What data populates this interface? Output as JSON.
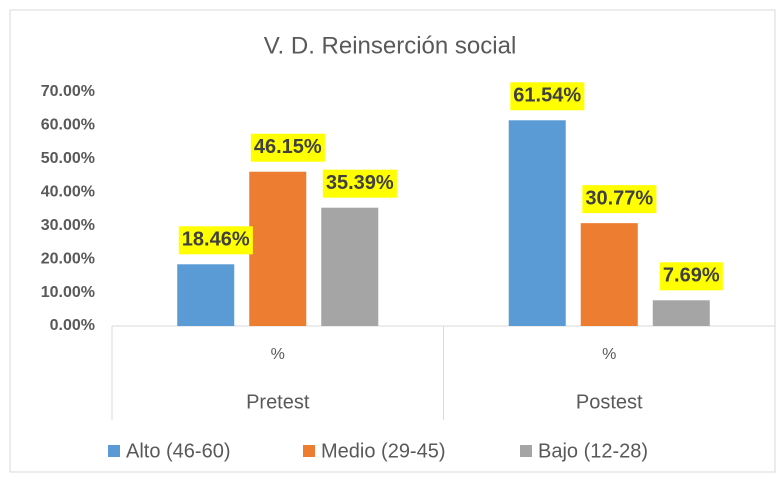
{
  "chart_data": {
    "type": "bar",
    "title": "V. D. Reinserción social",
    "categories": [
      "%",
      "%"
    ],
    "groups": [
      "Pretest",
      "Postest"
    ],
    "series": [
      {
        "name": "Alto (46-60)",
        "color": "#5b9bd5",
        "values": [
          18.46,
          61.54
        ],
        "value_labels": [
          "18.46%",
          "61.54%"
        ]
      },
      {
        "name": "Medio (29-45)",
        "color": "#ed7d31",
        "values": [
          46.15,
          30.77
        ],
        "value_labels": [
          "46.15%",
          "30.77%"
        ]
      },
      {
        "name": "Bajo (12-28)",
        "color": "#a5a5a5",
        "values": [
          35.39,
          7.69
        ],
        "value_labels": [
          "35.39%",
          "7.69%"
        ]
      }
    ],
    "ylim": [
      0,
      70
    ],
    "yticks": [
      {
        "value": 0,
        "label": "0.00%"
      },
      {
        "value": 10,
        "label": "10.00%"
      },
      {
        "value": 20,
        "label": "20.00%"
      },
      {
        "value": 30,
        "label": "30.00%"
      },
      {
        "value": 40,
        "label": "40.00%"
      },
      {
        "value": 50,
        "label": "50.00%"
      },
      {
        "value": 60,
        "label": "60.00%"
      },
      {
        "value": 70,
        "label": "70.00%"
      }
    ],
    "grid": false,
    "legend": "bottom",
    "label_background": "#ffff00"
  }
}
